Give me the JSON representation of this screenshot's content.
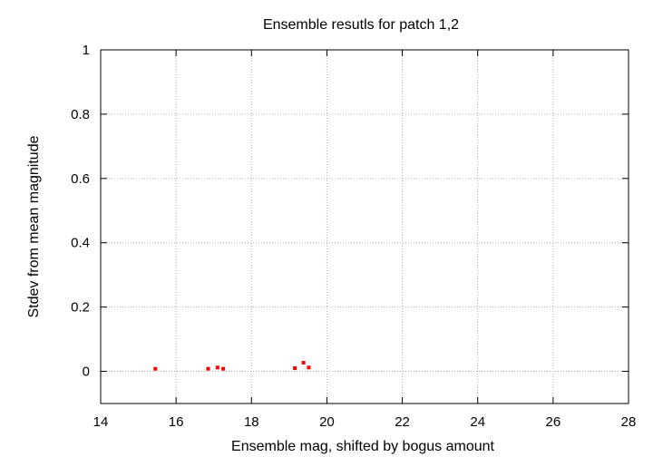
{
  "chart_data": {
    "type": "scatter",
    "title": "Ensemble resutls for patch 1,2",
    "xlabel": "Ensemble mag, shifted by bogus amount",
    "ylabel": "Stdev from mean magnitude",
    "xlim": [
      14,
      28
    ],
    "ylim": [
      -0.1,
      1
    ],
    "xticks": [
      14,
      16,
      18,
      20,
      22,
      24,
      26,
      28
    ],
    "yticks": [
      0,
      0.2,
      0.4,
      0.6,
      0.8,
      1
    ],
    "grid": true,
    "marker_color": "#ff0000",
    "series": [
      {
        "x": [
          15.45,
          16.85,
          17.1,
          17.25,
          19.15,
          19.38,
          19.52
        ],
        "y": [
          0.008,
          0.008,
          0.012,
          0.008,
          0.01,
          0.027,
          0.012
        ]
      }
    ]
  }
}
